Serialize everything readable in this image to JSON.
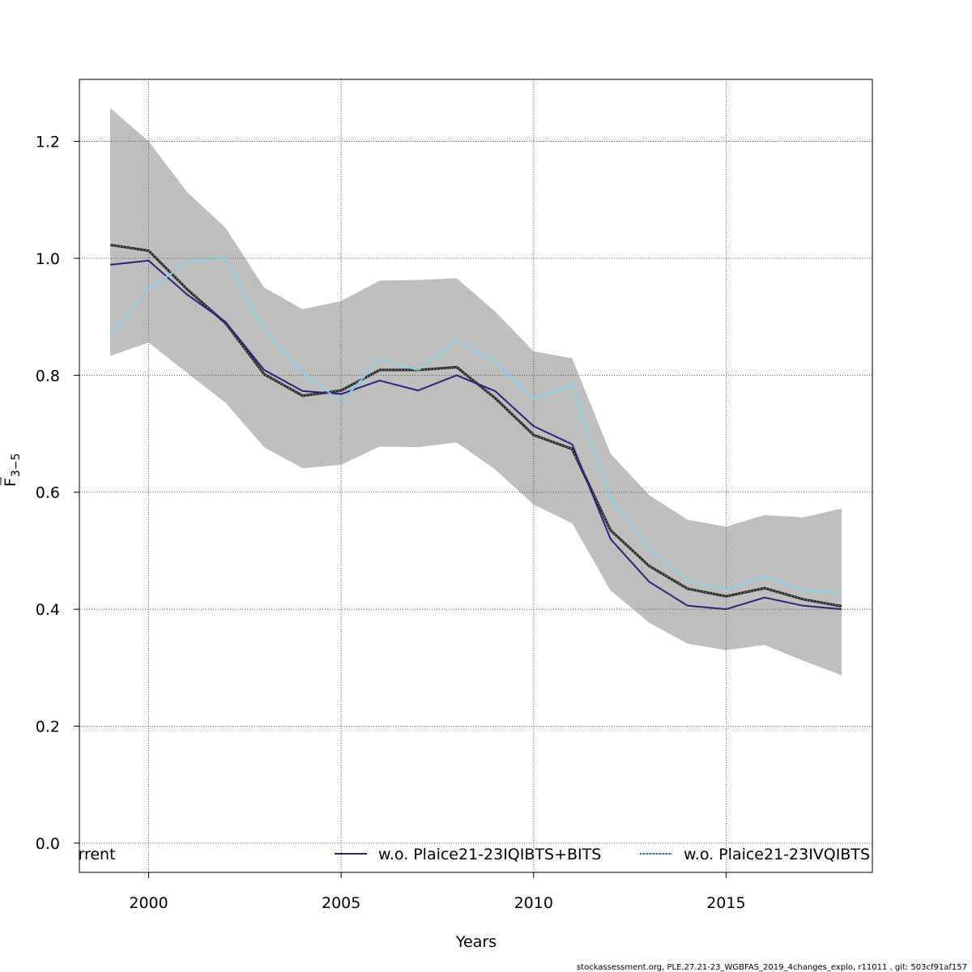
{
  "chart_data": {
    "type": "line",
    "title": "",
    "xlabel": "Years",
    "ylabel_main": "F",
    "ylabel_sub": "3−5",
    "xlim": [
      1998.2,
      2018.8
    ],
    "ylim": [
      -0.05,
      1.306
    ],
    "xticks": [
      2000,
      2005,
      2010,
      2015
    ],
    "yticks": [
      0.0,
      0.2,
      0.4,
      0.6,
      0.8,
      1.0,
      1.2
    ],
    "ytick_labels": [
      "0.0",
      "0.2",
      "0.4",
      "0.6",
      "0.8",
      "1.0",
      "1.2"
    ],
    "grid": true,
    "legend_position": "bottom",
    "x": [
      1999,
      2000,
      2001,
      2002,
      2003,
      2004,
      2005,
      2006,
      2007,
      2008,
      2009,
      2010,
      2011,
      2012,
      2013,
      2014,
      2015,
      2016,
      2017,
      2018
    ],
    "confidence_band": {
      "color": "#bebebe",
      "upper": [
        1.257,
        1.2,
        1.113,
        1.052,
        0.95,
        0.913,
        0.927,
        0.962,
        0.963,
        0.966,
        0.909,
        0.841,
        0.829,
        0.666,
        0.595,
        0.553,
        0.541,
        0.561,
        0.557,
        0.572
      ],
      "lower": [
        0.833,
        0.856,
        0.804,
        0.753,
        0.677,
        0.641,
        0.647,
        0.678,
        0.677,
        0.685,
        0.639,
        0.579,
        0.547,
        0.432,
        0.377,
        0.341,
        0.33,
        0.339,
        0.312,
        0.287
      ]
    },
    "series": [
      {
        "name": "current",
        "legend_text": "current",
        "color": "#222222",
        "style": "current",
        "values": [
          1.023,
          1.013,
          0.947,
          0.889,
          0.802,
          0.765,
          0.774,
          0.809,
          0.809,
          0.814,
          0.761,
          0.698,
          0.674,
          0.535,
          0.474,
          0.435,
          0.422,
          0.436,
          0.417,
          0.405
        ]
      },
      {
        "name": "w.o. Plaice21-23IQIBTS+BITS",
        "legend_text": "w.o. Plaice21-23IQIBTS+BITS",
        "color": "#2b1f80",
        "style": "solid",
        "values": [
          0.989,
          0.996,
          0.938,
          0.891,
          0.809,
          0.773,
          0.768,
          0.791,
          0.774,
          0.8,
          0.773,
          0.713,
          0.682,
          0.52,
          0.447,
          0.406,
          0.4,
          0.42,
          0.406,
          0.4
        ]
      },
      {
        "name": "w.o. Plaice21-23IVQIBTS",
        "legend_text": "w.o. Plaice21-23IVQIBTS",
        "color": "#87ceeb",
        "style": "solid",
        "values": [
          0.866,
          0.948,
          0.993,
          1.0,
          0.877,
          0.806,
          0.754,
          0.827,
          0.809,
          0.861,
          0.822,
          0.76,
          0.783,
          0.588,
          0.504,
          0.449,
          0.433,
          0.456,
          0.433,
          0.426
        ]
      }
    ]
  },
  "legend": {
    "current_label": "current",
    "series2_label": "w.o. Plaice21-23IQIBTS+BITS",
    "series3_label": "w.o. Plaice21-23IVQIBTS"
  },
  "footer": {
    "credit": "stockassessment.org, PLE.27.21-23_WGBFAS_2019_4changes_explo, r11011 , git: 503cf91af157"
  }
}
